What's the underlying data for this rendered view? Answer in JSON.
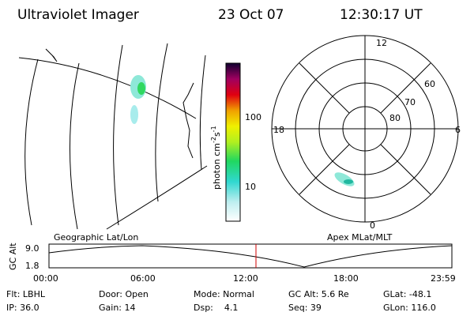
{
  "header": {
    "instrument": "Ultraviolet Imager",
    "date": "23 Oct 07",
    "time": "12:30:17 UT"
  },
  "map": {
    "label": "Geographic Lat/Lon"
  },
  "colorbar": {
    "label": {
      "base": "photon cm",
      "exp1": "-2",
      "unit": "s",
      "exp2": "-1"
    },
    "ticks": [
      "100",
      "10"
    ]
  },
  "polar": {
    "label": "Apex MLat/MLT",
    "mlt": {
      "top": "12",
      "left": "18",
      "right": "6",
      "bottom": "0"
    },
    "rings": [
      "60",
      "70",
      "80"
    ]
  },
  "altitude": {
    "axis_label": "GC Alt",
    "ticks": [
      "9.0",
      "1.8"
    ],
    "times": [
      "00:00",
      "06:00",
      "12:00",
      "18:00",
      "23:59"
    ]
  },
  "status": {
    "filter": "Flt: LBHL",
    "ip": "IP: 36.0",
    "door": "Door: Open",
    "gain": "Gain: 14",
    "mode": "Mode: Normal",
    "dsp": "Dsp:    4.1",
    "gc_alt": "GC Alt: 5.6 Re",
    "seq": "Seq: 39",
    "glat": "GLat: -48.1",
    "glon": "GLon: 116.0"
  }
}
